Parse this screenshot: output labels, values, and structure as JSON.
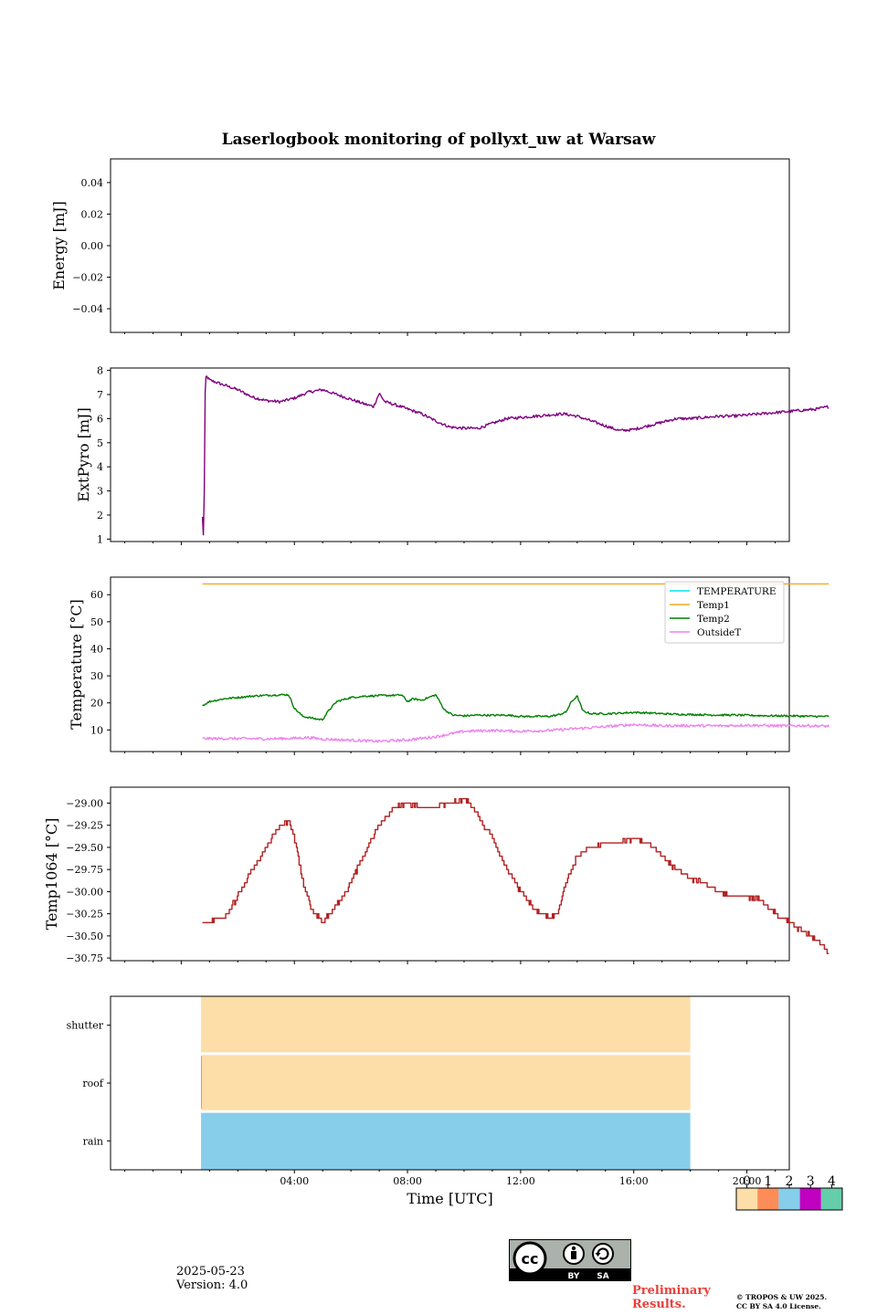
{
  "title": "Laserlogbook monitoring of pollyxt_uw at Warsaw",
  "footer": {
    "date": "2025-05-23",
    "version": "Version: 4.0",
    "preliminary": [
      "Preliminary",
      "Results."
    ],
    "copyright": [
      "© TROPOS & UW 2025.",
      "CC BY SA 4.0 License."
    ],
    "license_badge": [
      "BY",
      "SA"
    ]
  },
  "colorbar": {
    "ticks": [
      "0",
      "1",
      "2",
      "3",
      "4"
    ],
    "colors": [
      "#fddea8",
      "#fc8d59",
      "#87ceeb",
      "#c000c0",
      "#66cdaa"
    ]
  },
  "x_axis": {
    "label": "Time [UTC]",
    "range_hours": [
      -2.5,
      21.5
    ],
    "ticks": [
      {
        "h": 4,
        "label": "04:00"
      },
      {
        "h": 8,
        "label": "08:00"
      },
      {
        "h": 12,
        "label": "12:00"
      },
      {
        "h": 16,
        "label": "16:00"
      },
      {
        "h": 20,
        "label": "20:00"
      }
    ]
  },
  "chart_data": [
    {
      "type": "line",
      "ylabel": "Energy [mJ]",
      "ylim": [
        -0.055,
        0.055
      ],
      "yticks": [
        -0.04,
        -0.02,
        0.0,
        0.02,
        0.04
      ],
      "ytick_labels": [
        "−0.04",
        "−0.02",
        "0.00",
        "0.02",
        "0.04"
      ],
      "series": []
    },
    {
      "type": "line",
      "ylabel": "ExtPyro [mJ]",
      "ylim": [
        0.9,
        8.1
      ],
      "yticks": [
        1,
        2,
        3,
        4,
        5,
        6,
        7,
        8
      ],
      "ytick_labels": [
        "1",
        "2",
        "3",
        "4",
        "5",
        "6",
        "7",
        "8"
      ],
      "series": [
        {
          "color": "#800080",
          "noise": 0.06,
          "x": [
            0.75,
            0.75,
            0.8,
            0.85,
            0.9,
            1.0,
            1.5,
            2.0,
            2.5,
            3.0,
            3.5,
            4.0,
            4.5,
            5.0,
            5.5,
            6.0,
            6.5,
            6.8,
            7.0,
            7.2,
            7.5,
            8.0,
            8.5,
            9.0,
            9.5,
            10.0,
            10.5,
            11.0,
            11.5,
            12.0,
            12.5,
            13.0,
            13.5,
            14.0,
            14.5,
            15.0,
            15.5,
            16.0,
            16.5,
            17.0,
            17.5,
            18.0,
            18.5,
            19.0,
            19.5,
            20.0,
            20.5,
            21.0,
            21.5,
            22.0,
            22.5,
            22.9
          ],
          "y": [
            1.9,
            1.2,
            1.2,
            7.7,
            7.75,
            7.6,
            7.4,
            7.2,
            6.9,
            6.75,
            6.7,
            6.85,
            7.1,
            7.2,
            7.0,
            6.8,
            6.6,
            6.5,
            7.05,
            6.7,
            6.6,
            6.4,
            6.2,
            5.9,
            5.65,
            5.6,
            5.6,
            5.8,
            6.0,
            6.05,
            6.1,
            6.15,
            6.2,
            6.1,
            5.9,
            5.7,
            5.5,
            5.55,
            5.7,
            5.85,
            6.0,
            6.0,
            6.05,
            6.1,
            6.1,
            6.15,
            6.2,
            6.25,
            6.3,
            6.35,
            6.4,
            6.5
          ]
        }
      ]
    },
    {
      "type": "line",
      "ylabel": "Temperature [°C]",
      "ylim": [
        2,
        66.5
      ],
      "yticks": [
        10,
        20,
        30,
        40,
        50,
        60
      ],
      "ytick_labels": [
        "10",
        "20",
        "30",
        "40",
        "50",
        "60"
      ],
      "legend": {
        "position": "upper right"
      },
      "series": [
        {
          "name": "TEMPERATURE",
          "color": "#00e5ee",
          "x": [],
          "y": []
        },
        {
          "name": "Temp1",
          "color": "#f5a623",
          "x": [
            0.75,
            22.9
          ],
          "y": [
            64,
            64
          ]
        },
        {
          "name": "Temp2",
          "color": "#008000",
          "noise": 0.35,
          "x": [
            0.75,
            1.0,
            1.5,
            2.0,
            2.5,
            3.0,
            3.5,
            3.8,
            4.0,
            4.3,
            4.8,
            5.0,
            5.2,
            5.5,
            6.0,
            6.5,
            7.0,
            7.5,
            7.8,
            8.0,
            8.2,
            8.5,
            9.0,
            9.3,
            9.6,
            10.0,
            10.5,
            11.0,
            11.5,
            12.0,
            12.5,
            13.0,
            13.3,
            13.6,
            13.8,
            14.0,
            14.2,
            14.5,
            15.0,
            15.5,
            16.0,
            16.5,
            17.0,
            17.5,
            18.0,
            18.5,
            19.0,
            19.5,
            20.0,
            20.5,
            21.0,
            21.5,
            22.0,
            22.5,
            22.9
          ],
          "y": [
            19,
            20.5,
            21.5,
            22,
            22.5,
            22.8,
            23,
            23,
            18,
            15,
            14,
            13.8,
            17,
            20.5,
            22,
            22.5,
            22.7,
            22.8,
            22.9,
            20.5,
            21.5,
            21,
            23,
            17.5,
            15.5,
            15.2,
            15.5,
            15.4,
            15.5,
            15,
            15,
            15,
            15.5,
            16.5,
            20.5,
            22.5,
            17,
            16,
            16,
            16.2,
            16.5,
            16.3,
            16,
            15.8,
            15.7,
            15.6,
            15.5,
            15.5,
            15.4,
            15.3,
            15.2,
            15.2,
            15.1,
            15.0,
            15.0
          ]
        },
        {
          "name": "OutsideT",
          "color": "#ee82ee",
          "noise": 0.5,
          "x": [
            0.75,
            2.0,
            3.0,
            4.0,
            4.5,
            5.0,
            6.0,
            7.0,
            8.0,
            9.0,
            9.5,
            10.0,
            11.0,
            12.0,
            13.0,
            14.0,
            15.0,
            15.5,
            16.0,
            17.0,
            18.0,
            19.0,
            20.0,
            21.0,
            22.0,
            22.9
          ],
          "y": [
            6.8,
            6.8,
            6.7,
            6.9,
            7.2,
            6.6,
            6.2,
            5.8,
            6.3,
            7.5,
            8.5,
            9.5,
            9.8,
            9.5,
            9.8,
            10.5,
            11.2,
            11.6,
            12.0,
            11.5,
            11.6,
            11.5,
            11.8,
            11.5,
            11.6,
            11.4
          ]
        }
      ]
    },
    {
      "type": "line",
      "ylabel": "Temp1064 [°C]",
      "ylim": [
        -30.78,
        -28.82
      ],
      "yticks": [
        -30.75,
        -30.5,
        -30.25,
        -30.0,
        -29.75,
        -29.5,
        -29.25,
        -29.0
      ],
      "ytick_labels": [
        "−30.75",
        "−30.50",
        "−30.25",
        "−30.00",
        "−29.75",
        "−29.50",
        "−29.25",
        "−29.00"
      ],
      "series": [
        {
          "color": "#b22222",
          "step": 0.05,
          "noise": 0.02,
          "x": [
            0.75,
            1.5,
            2.0,
            2.5,
            3.0,
            3.5,
            3.8,
            4.0,
            4.3,
            4.6,
            5.0,
            5.5,
            6.0,
            6.5,
            7.0,
            7.5,
            8.0,
            8.5,
            9.0,
            9.5,
            10.0,
            10.3,
            10.6,
            11.0,
            11.5,
            12.0,
            12.5,
            13.0,
            13.3,
            13.6,
            14.0,
            14.5,
            15.0,
            15.5,
            16.0,
            16.5,
            17.0,
            17.5,
            18.0,
            18.5,
            19.0,
            19.5,
            20.0,
            20.5,
            21.0,
            21.5,
            22.0,
            22.5,
            22.9
          ],
          "y": [
            -30.35,
            -30.3,
            -30.05,
            -29.75,
            -29.5,
            -29.25,
            -29.2,
            -29.4,
            -29.9,
            -30.2,
            -30.35,
            -30.15,
            -29.9,
            -29.55,
            -29.25,
            -29.05,
            -29.0,
            -29.05,
            -29.05,
            -29.0,
            -28.95,
            -29.05,
            -29.2,
            -29.4,
            -29.75,
            -30.0,
            -30.2,
            -30.3,
            -30.25,
            -29.9,
            -29.6,
            -29.5,
            -29.45,
            -29.45,
            -29.4,
            -29.45,
            -29.6,
            -29.75,
            -29.85,
            -29.9,
            -30.0,
            -30.05,
            -30.05,
            -30.1,
            -30.25,
            -30.35,
            -30.45,
            -30.55,
            -30.7
          ]
        }
      ]
    },
    {
      "type": "heatmap",
      "rows": [
        "shutter",
        "roof",
        "rain"
      ],
      "x_range_hours": [
        0.7,
        18.0
      ],
      "values": [
        0,
        0,
        2
      ],
      "thin_line_row": "roof",
      "thin_line_color": "#fc8d59"
    }
  ]
}
